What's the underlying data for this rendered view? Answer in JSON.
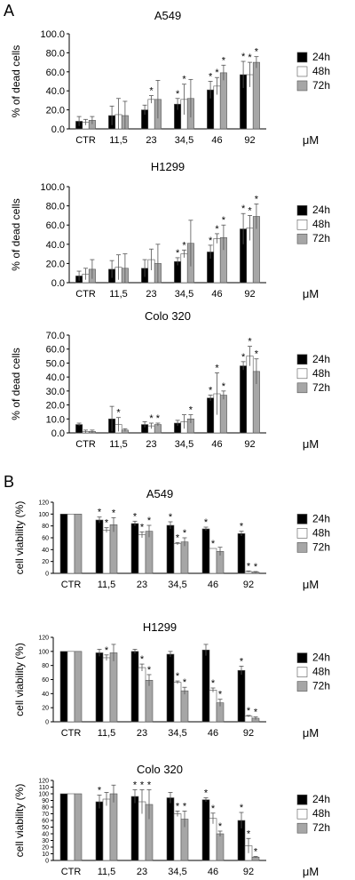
{
  "panel_labels": [
    "A",
    "B"
  ],
  "chart_data": [
    {
      "type": "bar",
      "title": "A549",
      "ylabel": "% of dead cells",
      "unit": "μM",
      "ylim": [
        0,
        100
      ],
      "yticks": [
        "0.0",
        "20.0",
        "40.0",
        "60.0",
        "80.0",
        "100.0"
      ],
      "categories": [
        "CTR",
        "11,5",
        "23",
        "34,5",
        "46",
        "92"
      ],
      "series": [
        {
          "name": "24h",
          "color": "#000000",
          "values": [
            8,
            14,
            20,
            26,
            41,
            57
          ],
          "errors": [
            5,
            10,
            5,
            6,
            9,
            14
          ],
          "star": [
            false,
            false,
            false,
            true,
            true,
            true
          ]
        },
        {
          "name": "48h",
          "color": "#ffffff",
          "values": [
            7,
            15,
            31,
            31,
            45,
            57
          ],
          "errors": [
            3,
            17,
            4,
            16,
            9,
            13
          ],
          "star": [
            false,
            false,
            true,
            true,
            true,
            true
          ]
        },
        {
          "name": "72h",
          "color": "#a6a6a6",
          "values": [
            9,
            14,
            31,
            32,
            59,
            70
          ],
          "errors": [
            4,
            15,
            20,
            20,
            8,
            6
          ],
          "star": [
            false,
            false,
            false,
            false,
            true,
            true
          ]
        }
      ]
    },
    {
      "type": "bar",
      "title": "H1299",
      "ylabel": "% of dead cells",
      "unit": "μM",
      "ylim": [
        0,
        100
      ],
      "yticks": [
        "0.0",
        "20.0",
        "40.0",
        "60.0",
        "80.0",
        "100.0"
      ],
      "categories": [
        "CTR",
        "11,5",
        "23",
        "34,5",
        "46",
        "92"
      ],
      "series": [
        {
          "name": "24h",
          "color": "#000000",
          "values": [
            7,
            14,
            15,
            22,
            32,
            56
          ],
          "errors": [
            5,
            9,
            9,
            4,
            7,
            16
          ],
          "star": [
            false,
            false,
            false,
            true,
            true,
            true
          ]
        },
        {
          "name": "48h",
          "color": "#ffffff",
          "values": [
            9,
            16,
            24,
            30,
            46,
            57
          ],
          "errors": [
            6,
            13,
            11,
            4,
            5,
            13
          ],
          "star": [
            false,
            false,
            false,
            true,
            true,
            true
          ]
        },
        {
          "name": "72h",
          "color": "#a6a6a6",
          "values": [
            14,
            15,
            20,
            41,
            47,
            69
          ],
          "errors": [
            10,
            15,
            20,
            24,
            13,
            13
          ],
          "star": [
            false,
            false,
            false,
            false,
            true,
            true
          ]
        }
      ]
    },
    {
      "type": "bar",
      "title": "Colo 320",
      "ylabel": "% of dead cells",
      "unit": "μM",
      "ylim": [
        0,
        70
      ],
      "yticks": [
        "0.0",
        "10.0",
        "20.0",
        "30.0",
        "40.0",
        "50.0",
        "60.0",
        "70.0"
      ],
      "categories": [
        "CTR",
        "11,5",
        "23",
        "34,5",
        "46",
        "92"
      ],
      "series": [
        {
          "name": "24h",
          "color": "#000000",
          "values": [
            6,
            10,
            6,
            7,
            25,
            48
          ],
          "errors": [
            1,
            9,
            2,
            2,
            2,
            3
          ],
          "star": [
            false,
            false,
            false,
            false,
            true,
            true
          ]
        },
        {
          "name": "48h",
          "color": "#ffffff",
          "values": [
            1,
            6,
            5,
            8,
            28,
            55
          ],
          "errors": [
            1,
            5,
            2,
            5,
            15,
            7
          ],
          "star": [
            false,
            true,
            true,
            false,
            true,
            true
          ]
        },
        {
          "name": "72h",
          "color": "#a6a6a6",
          "values": [
            1,
            2,
            6,
            10,
            27,
            44
          ],
          "errors": [
            1,
            1,
            1,
            3,
            3,
            9
          ],
          "star": [
            false,
            false,
            true,
            true,
            true,
            true
          ]
        }
      ]
    },
    {
      "type": "bar",
      "title": "A549",
      "ylabel": "cell viability (%)",
      "unit": "μM",
      "ylim": [
        0,
        120
      ],
      "yticks": [
        "0",
        "20",
        "40",
        "60",
        "80",
        "100",
        "120"
      ],
      "categories": [
        "CTR",
        "11,5",
        "23",
        "34,5",
        "46",
        "92"
      ],
      "series": [
        {
          "name": "24h",
          "color": "#000000",
          "values": [
            100,
            90,
            84,
            81,
            75,
            67
          ],
          "errors": [
            0,
            5,
            4,
            6,
            3,
            4
          ],
          "star": [
            false,
            true,
            true,
            true,
            true,
            true
          ]
        },
        {
          "name": "48h",
          "color": "#ffffff",
          "values": [
            100,
            73,
            65,
            50,
            42,
            3
          ],
          "errors": [
            0,
            4,
            5,
            2,
            0,
            1
          ],
          "star": [
            false,
            true,
            true,
            true,
            true,
            true
          ]
        },
        {
          "name": "72h",
          "color": "#a6a6a6",
          "values": [
            100,
            82,
            71,
            53,
            37,
            2
          ],
          "errors": [
            0,
            12,
            10,
            7,
            7,
            1
          ],
          "star": [
            false,
            true,
            true,
            true,
            false,
            true
          ]
        }
      ]
    },
    {
      "type": "bar",
      "title": "H1299",
      "ylabel": "cell viability (%)",
      "unit": "μM",
      "ylim": [
        0,
        120
      ],
      "yticks": [
        "0",
        "20",
        "40",
        "60",
        "80",
        "100",
        "120"
      ],
      "categories": [
        "CTR",
        "11,5",
        "23",
        "34,5",
        "46",
        "92"
      ],
      "series": [
        {
          "name": "24h",
          "color": "#000000",
          "values": [
            100,
            98,
            100,
            96,
            102,
            73
          ],
          "errors": [
            0,
            5,
            3,
            4,
            8,
            6
          ],
          "star": [
            false,
            false,
            false,
            false,
            false,
            true
          ]
        },
        {
          "name": "48h",
          "color": "#ffffff",
          "values": [
            100,
            91,
            77,
            56,
            45,
            8
          ],
          "errors": [
            0,
            4,
            5,
            2,
            3,
            1
          ],
          "star": [
            false,
            true,
            true,
            true,
            true,
            true
          ]
        },
        {
          "name": "72h",
          "color": "#a6a6a6",
          "values": [
            100,
            98,
            59,
            44,
            27,
            5
          ],
          "errors": [
            0,
            12,
            8,
            5,
            5,
            2
          ],
          "star": [
            false,
            false,
            true,
            true,
            true,
            true
          ]
        }
      ]
    },
    {
      "type": "bar",
      "title": "Colo 320",
      "ylabel": "cell viability (%)",
      "unit": "μM",
      "ylim": [
        0,
        120
      ],
      "yticks": [
        "0",
        "10",
        "20",
        "30",
        "40",
        "50",
        "60",
        "70",
        "80",
        "90",
        "100",
        "110",
        "120"
      ],
      "categories": [
        "CTR",
        "11,5",
        "23",
        "34,5",
        "46",
        "92"
      ],
      "series": [
        {
          "name": "24h",
          "color": "#000000",
          "values": [
            100,
            88,
            96,
            94,
            91,
            60
          ],
          "errors": [
            0,
            10,
            10,
            8,
            3,
            12
          ],
          "star": [
            false,
            true,
            true,
            false,
            true,
            true
          ]
        },
        {
          "name": "48h",
          "color": "#ffffff",
          "values": [
            100,
            92,
            88,
            70,
            63,
            22
          ],
          "errors": [
            0,
            10,
            18,
            4,
            8,
            11
          ],
          "star": [
            false,
            false,
            true,
            true,
            true,
            true
          ]
        },
        {
          "name": "72h",
          "color": "#a6a6a6",
          "values": [
            100,
            100,
            84,
            62,
            40,
            5
          ],
          "errors": [
            0,
            13,
            22,
            12,
            4,
            1
          ],
          "star": [
            false,
            false,
            true,
            true,
            true,
            true
          ]
        }
      ]
    }
  ]
}
